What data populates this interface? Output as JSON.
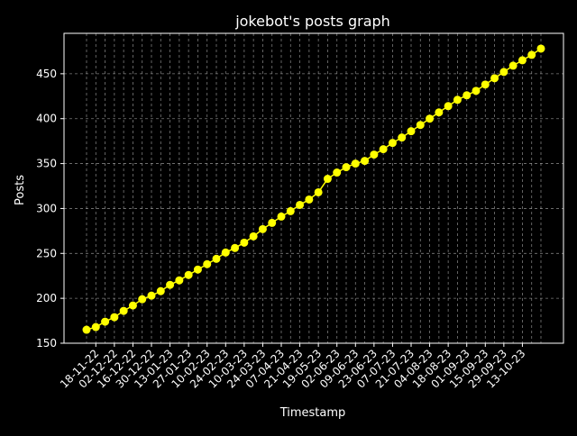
{
  "chart_data": {
    "type": "line",
    "title": "jokebot's posts graph",
    "xlabel": "Timestamp",
    "ylabel": "Posts",
    "ylim": [
      150,
      495
    ],
    "yticks": [
      150,
      200,
      250,
      300,
      350,
      400,
      450
    ],
    "xtick_labels": [
      "18-11-22",
      "02-12-22",
      "16-12-22",
      "30-12-22",
      "13-01-23",
      "27-01-23",
      "10-02-23",
      "24-02-23",
      "10-03-23",
      "24-03-23",
      "07-04-23",
      "21-04-23",
      "19-05-23",
      "02-06-23",
      "09-06-23",
      "23-06-23",
      "07-07-23",
      "21-07-23",
      "04-08-23",
      "18-08-23",
      "01-09-23",
      "15-09-23",
      "29-09-23",
      "13-10-23"
    ],
    "grid": true,
    "colors": {
      "background": "#000000",
      "line": "#ffff00",
      "marker": "#ffff00",
      "text": "#ffffff",
      "grid": "#b0b0b0"
    },
    "series": [
      {
        "values": [
          165,
          168,
          174,
          179,
          186,
          192,
          199,
          203,
          208,
          215,
          220,
          226,
          232,
          238,
          244,
          251,
          256,
          262,
          269,
          277,
          284,
          291,
          297,
          304,
          310,
          318,
          333,
          340,
          346,
          350,
          353,
          360,
          366,
          373,
          379,
          386,
          393,
          400,
          407,
          414,
          421,
          426,
          431,
          438,
          445,
          452,
          459,
          465,
          471,
          478
        ]
      }
    ]
  }
}
